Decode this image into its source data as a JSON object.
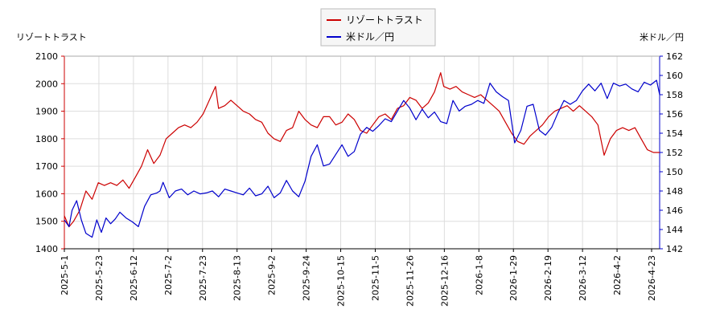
{
  "chart_data": {
    "type": "line",
    "y_left_label": "リゾートトラスト",
    "y_right_label": "米ドル／円",
    "y_left_range": [
      1400,
      2100
    ],
    "y_left_ticks": [
      "1400",
      "1500",
      "1600",
      "1700",
      "1800",
      "1900",
      "2000",
      "2100"
    ],
    "y_right_range": [
      142,
      162
    ],
    "y_right_ticks": [
      "142",
      "144",
      "146",
      "148",
      "150",
      "152",
      "154",
      "156",
      "158",
      "160",
      "162"
    ],
    "x_ticks": [
      "2025-5-1",
      "2025-5-23",
      "2025-6-12",
      "2025-7-2",
      "2025-7-23",
      "2025-8-13",
      "2025-9-2",
      "2025-9-24",
      "2025-10-15",
      "2025-11-5",
      "2025-11-26",
      "2025-12-16",
      "2026-1-8",
      "2026-1-29",
      "2026-2-19",
      "2026-3-12",
      "2026-4-2",
      "2026-4-23"
    ],
    "grid": true,
    "legend_position": "top-center",
    "series": [
      {
        "name": "リゾートトラスト",
        "axis": "left",
        "color": "#cc0000",
        "values": [
          [
            0,
            1520
          ],
          [
            3,
            1480
          ],
          [
            6,
            1500
          ],
          [
            10,
            1540
          ],
          [
            14,
            1610
          ],
          [
            18,
            1580
          ],
          [
            22,
            1640
          ],
          [
            26,
            1630
          ],
          [
            30,
            1640
          ],
          [
            34,
            1630
          ],
          [
            38,
            1650
          ],
          [
            42,
            1620
          ],
          [
            46,
            1660
          ],
          [
            50,
            1700
          ],
          [
            54,
            1760
          ],
          [
            58,
            1710
          ],
          [
            62,
            1740
          ],
          [
            66,
            1800
          ],
          [
            70,
            1820
          ],
          [
            74,
            1840
          ],
          [
            78,
            1850
          ],
          [
            82,
            1840
          ],
          [
            86,
            1860
          ],
          [
            90,
            1890
          ],
          [
            94,
            1940
          ],
          [
            98,
            1990
          ],
          [
            100,
            1910
          ],
          [
            104,
            1920
          ],
          [
            108,
            1940
          ],
          [
            112,
            1920
          ],
          [
            116,
            1900
          ],
          [
            120,
            1890
          ],
          [
            124,
            1870
          ],
          [
            128,
            1860
          ],
          [
            132,
            1820
          ],
          [
            136,
            1800
          ],
          [
            140,
            1790
          ],
          [
            144,
            1830
          ],
          [
            148,
            1840
          ],
          [
            152,
            1900
          ],
          [
            156,
            1870
          ],
          [
            160,
            1850
          ],
          [
            164,
            1840
          ],
          [
            168,
            1880
          ],
          [
            172,
            1880
          ],
          [
            176,
            1850
          ],
          [
            180,
            1860
          ],
          [
            184,
            1890
          ],
          [
            188,
            1870
          ],
          [
            192,
            1830
          ],
          [
            196,
            1820
          ],
          [
            200,
            1850
          ],
          [
            204,
            1880
          ],
          [
            208,
            1890
          ],
          [
            212,
            1870
          ],
          [
            216,
            1910
          ],
          [
            220,
            1920
          ],
          [
            224,
            1950
          ],
          [
            228,
            1940
          ],
          [
            232,
            1910
          ],
          [
            236,
            1930
          ],
          [
            240,
            1970
          ],
          [
            244,
            2040
          ],
          [
            246,
            1990
          ],
          [
            250,
            1980
          ],
          [
            254,
            1990
          ],
          [
            258,
            1970
          ],
          [
            262,
            1960
          ],
          [
            266,
            1950
          ],
          [
            270,
            1960
          ],
          [
            274,
            1940
          ],
          [
            278,
            1920
          ],
          [
            282,
            1900
          ],
          [
            286,
            1860
          ],
          [
            290,
            1820
          ],
          [
            294,
            1790
          ],
          [
            298,
            1780
          ],
          [
            302,
            1810
          ],
          [
            306,
            1830
          ],
          [
            310,
            1850
          ],
          [
            314,
            1880
          ],
          [
            318,
            1900
          ],
          [
            322,
            1910
          ],
          [
            326,
            1920
          ],
          [
            330,
            1900
          ],
          [
            334,
            1920
          ],
          [
            338,
            1900
          ],
          [
            342,
            1880
          ],
          [
            346,
            1850
          ],
          [
            350,
            1740
          ],
          [
            354,
            1800
          ],
          [
            358,
            1830
          ],
          [
            362,
            1840
          ],
          [
            366,
            1830
          ],
          [
            370,
            1840
          ],
          [
            374,
            1800
          ],
          [
            378,
            1760
          ],
          [
            382,
            1750
          ],
          [
            386,
            1750
          ]
        ]
      },
      {
        "name": "米ドル／円",
        "axis": "right",
        "color": "#0000cc",
        "values": [
          [
            0,
            145.0
          ],
          [
            3,
            144.3
          ],
          [
            5,
            146.0
          ],
          [
            8,
            147.0
          ],
          [
            11,
            145.0
          ],
          [
            14,
            143.6
          ],
          [
            18,
            143.2
          ],
          [
            21,
            145.0
          ],
          [
            24,
            143.7
          ],
          [
            27,
            145.2
          ],
          [
            30,
            144.6
          ],
          [
            33,
            145.1
          ],
          [
            36,
            145.8
          ],
          [
            40,
            145.2
          ],
          [
            44,
            144.8
          ],
          [
            48,
            144.3
          ],
          [
            52,
            146.4
          ],
          [
            56,
            147.6
          ],
          [
            60,
            147.8
          ],
          [
            62,
            148.0
          ],
          [
            64,
            148.9
          ],
          [
            68,
            147.3
          ],
          [
            72,
            148.0
          ],
          [
            76,
            148.2
          ],
          [
            80,
            147.6
          ],
          [
            84,
            148.0
          ],
          [
            88,
            147.7
          ],
          [
            92,
            147.8
          ],
          [
            96,
            148.0
          ],
          [
            100,
            147.4
          ],
          [
            104,
            148.2
          ],
          [
            108,
            148.0
          ],
          [
            112,
            147.8
          ],
          [
            116,
            147.6
          ],
          [
            120,
            148.3
          ],
          [
            124,
            147.5
          ],
          [
            128,
            147.7
          ],
          [
            132,
            148.5
          ],
          [
            136,
            147.3
          ],
          [
            140,
            147.8
          ],
          [
            144,
            149.1
          ],
          [
            148,
            148.0
          ],
          [
            152,
            147.4
          ],
          [
            156,
            149.0
          ],
          [
            160,
            151.6
          ],
          [
            164,
            152.8
          ],
          [
            168,
            150.6
          ],
          [
            172,
            150.8
          ],
          [
            176,
            151.8
          ],
          [
            180,
            152.8
          ],
          [
            184,
            151.6
          ],
          [
            188,
            152.1
          ],
          [
            192,
            153.9
          ],
          [
            196,
            154.6
          ],
          [
            200,
            154.2
          ],
          [
            204,
            154.8
          ],
          [
            208,
            155.5
          ],
          [
            212,
            155.2
          ],
          [
            216,
            156.3
          ],
          [
            220,
            157.4
          ],
          [
            224,
            156.6
          ],
          [
            228,
            155.4
          ],
          [
            232,
            156.5
          ],
          [
            236,
            155.6
          ],
          [
            240,
            156.2
          ],
          [
            244,
            155.2
          ],
          [
            248,
            155.0
          ],
          [
            252,
            157.4
          ],
          [
            256,
            156.3
          ],
          [
            260,
            156.8
          ],
          [
            264,
            157.0
          ],
          [
            268,
            157.4
          ],
          [
            272,
            157.1
          ],
          [
            276,
            159.2
          ],
          [
            280,
            158.3
          ],
          [
            284,
            157.8
          ],
          [
            288,
            157.4
          ],
          [
            292,
            153.0
          ],
          [
            296,
            154.3
          ],
          [
            300,
            156.8
          ],
          [
            304,
            157.0
          ],
          [
            308,
            154.3
          ],
          [
            312,
            153.8
          ],
          [
            316,
            154.6
          ],
          [
            320,
            156.1
          ],
          [
            324,
            157.4
          ],
          [
            328,
            157.0
          ],
          [
            332,
            157.4
          ],
          [
            336,
            158.4
          ],
          [
            340,
            159.1
          ],
          [
            344,
            158.4
          ],
          [
            348,
            159.2
          ],
          [
            352,
            157.6
          ],
          [
            356,
            159.2
          ],
          [
            360,
            158.9
          ],
          [
            364,
            159.1
          ],
          [
            368,
            158.6
          ],
          [
            372,
            158.3
          ],
          [
            376,
            159.3
          ],
          [
            380,
            159.0
          ],
          [
            384,
            159.5
          ],
          [
            386,
            158.0
          ]
        ]
      }
    ]
  }
}
